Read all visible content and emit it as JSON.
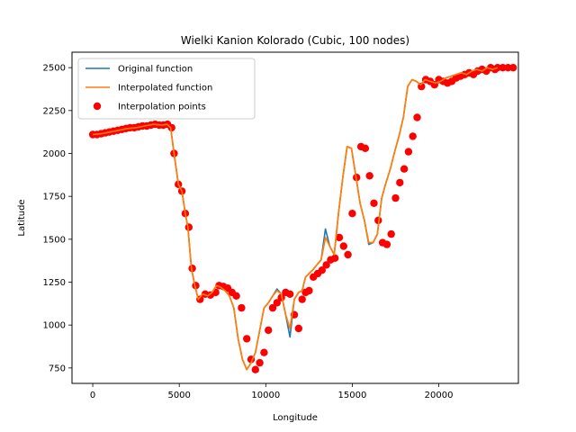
{
  "chart_data": {
    "type": "line",
    "title": "Wielki Kanion Kolorado (Cubic, 100 nodes)",
    "xlabel": "Longitude",
    "ylabel": "Latitude",
    "xlim": [
      -1200,
      24600
    ],
    "ylim": [
      660,
      2590
    ],
    "xticks": [
      0,
      5000,
      10000,
      15000,
      20000
    ],
    "yticks": [
      750,
      1000,
      1250,
      1500,
      1750,
      2000,
      2250,
      2500
    ],
    "legend": {
      "location": "top-left"
    },
    "grid": false,
    "series": [
      {
        "name": "Original function",
        "kind": "line",
        "color": "#1f77b4",
        "x": [
          0,
          500,
          1000,
          1500,
          2000,
          2500,
          3000,
          3500,
          4000,
          4300,
          4500,
          4700,
          4950,
          5150,
          5350,
          5500,
          5700,
          5900,
          6100,
          6350,
          6650,
          6900,
          7150,
          7400,
          7650,
          7900,
          8150,
          8400,
          8650,
          8900,
          9150,
          9400,
          9650,
          9900,
          10150,
          10400,
          10650,
          10900,
          11150,
          11400,
          11650,
          11900,
          12100,
          12300,
          12500,
          12700,
          12950,
          13200,
          13450,
          13700,
          13950,
          14200,
          14450,
          14700,
          14950,
          15200,
          15450,
          15700,
          15950,
          16200,
          16450,
          16700,
          16950,
          17200,
          17450,
          17700,
          17950,
          18200,
          18450,
          18700,
          18950,
          19200,
          19500,
          19800,
          20100,
          20400,
          20700,
          21000,
          21300,
          21600,
          21900,
          22200,
          22500,
          22800,
          23100,
          23400
        ],
        "y": [
          2110,
          2115,
          2125,
          2135,
          2145,
          2150,
          2160,
          2170,
          2165,
          2170,
          2150,
          2000,
          1820,
          1780,
          1650,
          1570,
          1330,
          1230,
          1150,
          1180,
          1170,
          1190,
          1230,
          1220,
          1200,
          1170,
          1100,
          920,
          800,
          740,
          780,
          840,
          970,
          1100,
          1130,
          1170,
          1210,
          1180,
          1060,
          930,
          1150,
          1190,
          1200,
          1280,
          1300,
          1320,
          1350,
          1380,
          1560,
          1460,
          1410,
          1650,
          1860,
          2040,
          2030,
          1870,
          1710,
          1610,
          1470,
          1480,
          1530,
          1740,
          1830,
          1910,
          2010,
          2100,
          2210,
          2390,
          2430,
          2420,
          2400,
          2430,
          2420,
          2410,
          2420,
          2440,
          2450,
          2460,
          2470,
          2460,
          2480,
          2490,
          2480,
          2500,
          2490,
          2500
        ]
      },
      {
        "name": "Interpolated function",
        "kind": "line",
        "color": "#ff7f0e",
        "x": [
          0,
          500,
          1000,
          1500,
          2000,
          2500,
          3000,
          3500,
          4000,
          4300,
          4500,
          4700,
          4950,
          5150,
          5350,
          5500,
          5700,
          5900,
          6100,
          6350,
          6650,
          6900,
          7150,
          7400,
          7650,
          7900,
          8150,
          8400,
          8650,
          8900,
          9150,
          9400,
          9650,
          9900,
          10150,
          10400,
          10650,
          10900,
          11150,
          11400,
          11650,
          11900,
          12100,
          12300,
          12500,
          12700,
          12950,
          13200,
          13450,
          13700,
          13950,
          14200,
          14450,
          14700,
          14950,
          15200,
          15450,
          15700,
          15950,
          16200,
          16450,
          16700,
          16950,
          17200,
          17450,
          17700,
          17950,
          18200,
          18450,
          18700,
          18950,
          19200,
          19500,
          19800,
          20100,
          20400,
          20700,
          21000,
          21300,
          21600,
          21900,
          22200,
          22500,
          22800,
          23100,
          23400
        ],
        "y": [
          2110,
          2115,
          2125,
          2135,
          2145,
          2150,
          2160,
          2170,
          2165,
          2170,
          2150,
          2000,
          1820,
          1780,
          1650,
          1570,
          1330,
          1230,
          1150,
          1180,
          1170,
          1190,
          1230,
          1220,
          1200,
          1170,
          1100,
          920,
          800,
          740,
          780,
          840,
          970,
          1100,
          1130,
          1170,
          1200,
          1180,
          1060,
          980,
          1150,
          1190,
          1200,
          1280,
          1300,
          1320,
          1350,
          1380,
          1510,
          1460,
          1410,
          1650,
          1860,
          2040,
          2030,
          1870,
          1710,
          1610,
          1480,
          1480,
          1530,
          1740,
          1830,
          1910,
          2010,
          2100,
          2210,
          2390,
          2430,
          2420,
          2400,
          2430,
          2420,
          2410,
          2420,
          2440,
          2450,
          2460,
          2470,
          2460,
          2480,
          2490,
          2480,
          2500,
          2490,
          2500
        ]
      },
      {
        "name": "Interpolation points",
        "kind": "scatter",
        "color": "#ff0000",
        "x": [
          0,
          240,
          480,
          720,
          960,
          1200,
          1440,
          1680,
          1920,
          2160,
          2400,
          2640,
          2880,
          3120,
          3360,
          3600,
          3840,
          4080,
          4320,
          4560,
          4700,
          4950,
          5150,
          5350,
          5550,
          5750,
          5950,
          6200,
          6500,
          6800,
          7100,
          7300,
          7550,
          7800,
          8050,
          8300,
          8600,
          8900,
          9150,
          9400,
          9650,
          9900,
          10150,
          10400,
          10650,
          10900,
          11150,
          11400,
          11650,
          11900,
          12100,
          12300,
          12500,
          12750,
          13000,
          13250,
          13500,
          13750,
          14000,
          14250,
          14500,
          14750,
          15000,
          15250,
          15500,
          15750,
          16000,
          16250,
          16500,
          16750,
          17000,
          17250,
          17500,
          17750,
          18000,
          18250,
          18500,
          18750,
          19000,
          19250,
          19500,
          19750,
          20000,
          20250,
          20500,
          20750,
          21000,
          21250,
          21500,
          21750,
          22000,
          22250,
          22500,
          22750,
          23000,
          23250,
          23400,
          23700,
          24000,
          24300
        ],
        "y": [
          2110,
          2110,
          2115,
          2120,
          2125,
          2130,
          2135,
          2140,
          2145,
          2150,
          2150,
          2155,
          2160,
          2160,
          2165,
          2170,
          2165,
          2165,
          2170,
          2150,
          2000,
          1820,
          1780,
          1650,
          1570,
          1330,
          1230,
          1150,
          1180,
          1175,
          1190,
          1230,
          1225,
          1215,
          1190,
          1170,
          1100,
          920,
          800,
          740,
          780,
          840,
          970,
          1100,
          1130,
          1160,
          1190,
          1180,
          1060,
          980,
          1150,
          1190,
          1200,
          1280,
          1300,
          1320,
          1350,
          1380,
          1390,
          1510,
          1460,
          1410,
          1650,
          1860,
          2040,
          2030,
          1870,
          1710,
          1610,
          1480,
          1470,
          1530,
          1740,
          1830,
          1910,
          2010,
          2100,
          2210,
          2390,
          2430,
          2420,
          2400,
          2430,
          2420,
          2410,
          2420,
          2440,
          2450,
          2460,
          2470,
          2460,
          2480,
          2490,
          2480,
          2500,
          2490,
          2500,
          2500,
          2500,
          2500
        ]
      }
    ]
  }
}
